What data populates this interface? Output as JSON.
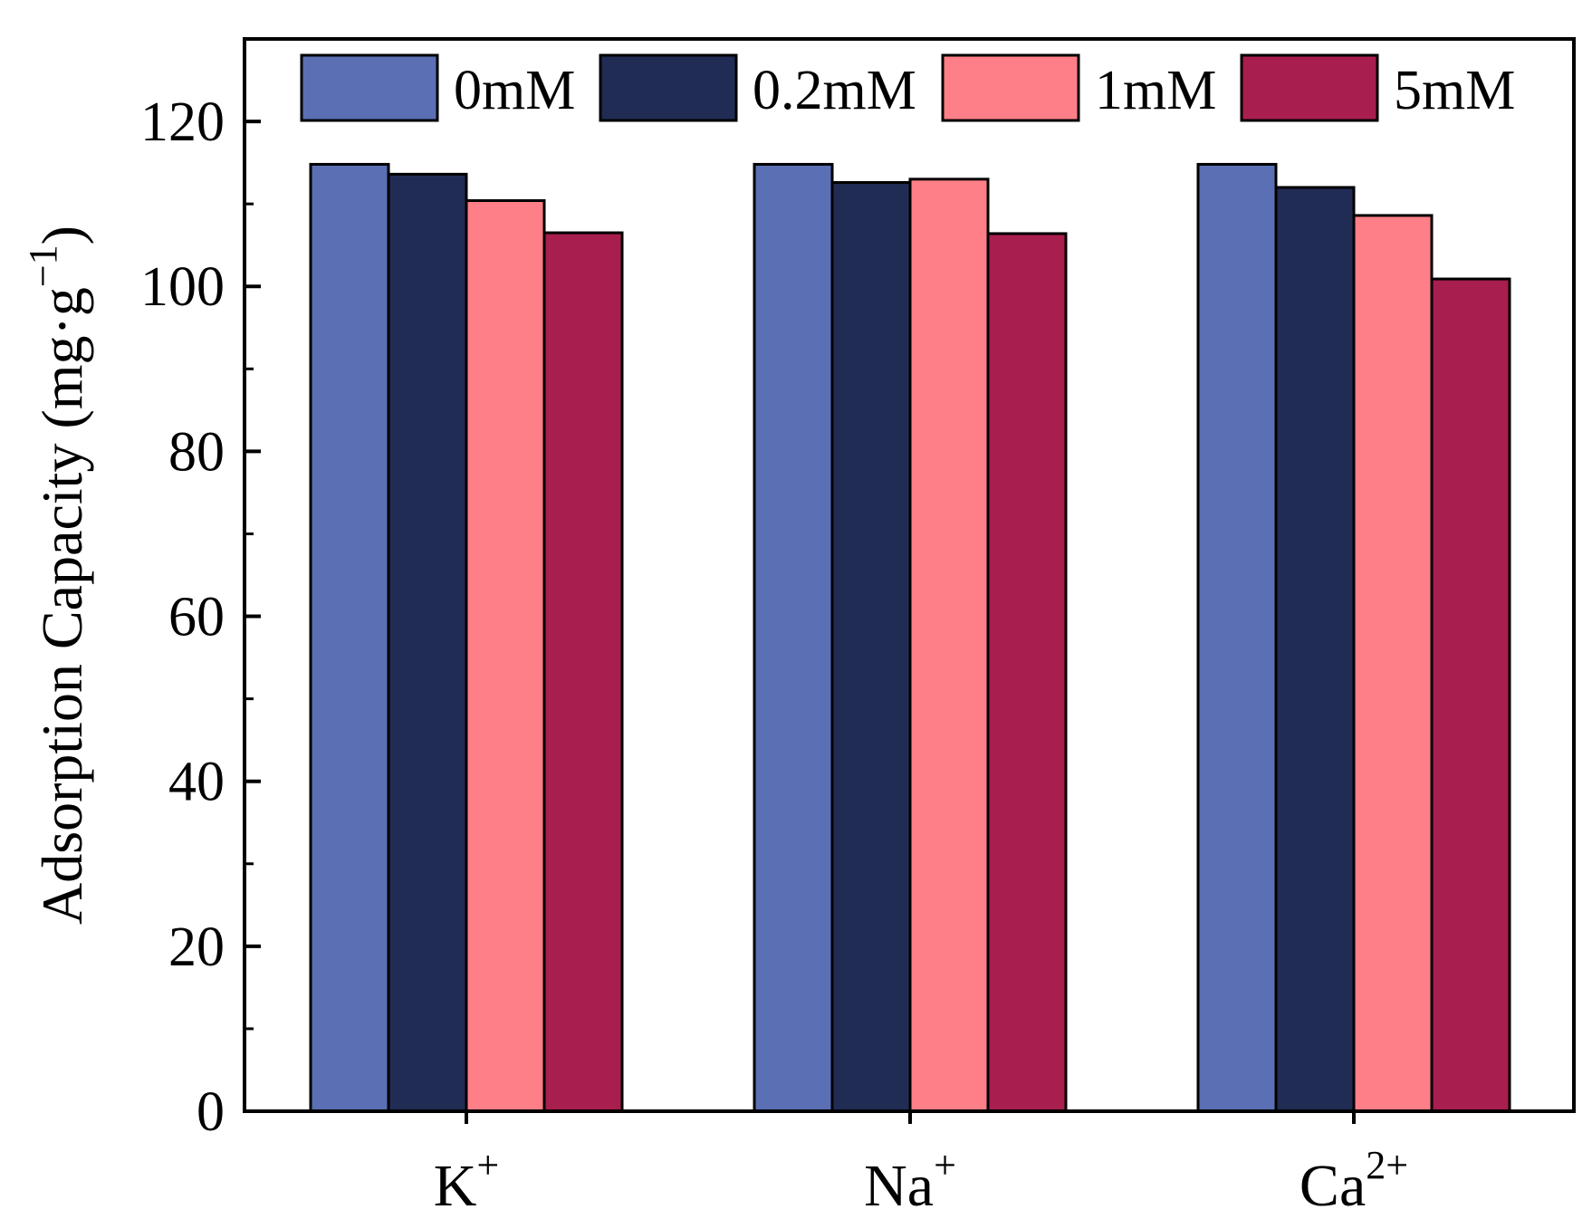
{
  "chart_data": {
    "type": "bar",
    "categories": [
      {
        "base": "K",
        "sup": "+"
      },
      {
        "base": "Na",
        "sup": "+"
      },
      {
        "base": "Ca",
        "sup": "2+"
      }
    ],
    "series": [
      {
        "name": "0mM",
        "color": "#5b6fb5",
        "values": [
          114.8,
          114.8,
          114.8
        ]
      },
      {
        "name": "0.2mM",
        "color": "#212c55",
        "values": [
          113.6,
          112.6,
          112.0
        ]
      },
      {
        "name": "1mM",
        "color": "#ff7f88",
        "values": [
          110.4,
          113.0,
          108.6
        ]
      },
      {
        "name": "5mM",
        "color": "#a81e4e",
        "values": [
          106.5,
          106.4,
          100.9
        ]
      }
    ],
    "ylabel": {
      "text": "Adsorption Capacity (mg·g",
      "sup": "−1",
      "close": ")"
    },
    "xlabel": "",
    "title": "",
    "ylim": [
      0,
      130
    ],
    "yticks": [
      "0",
      "20",
      "40",
      "60",
      "80",
      "100",
      "120"
    ],
    "ytick_values": [
      0,
      20,
      40,
      60,
      80,
      100,
      120
    ],
    "minor_ytick_values": [
      10,
      30,
      50,
      70,
      90,
      110
    ],
    "grid": false,
    "legend": "top, horizontal"
  }
}
